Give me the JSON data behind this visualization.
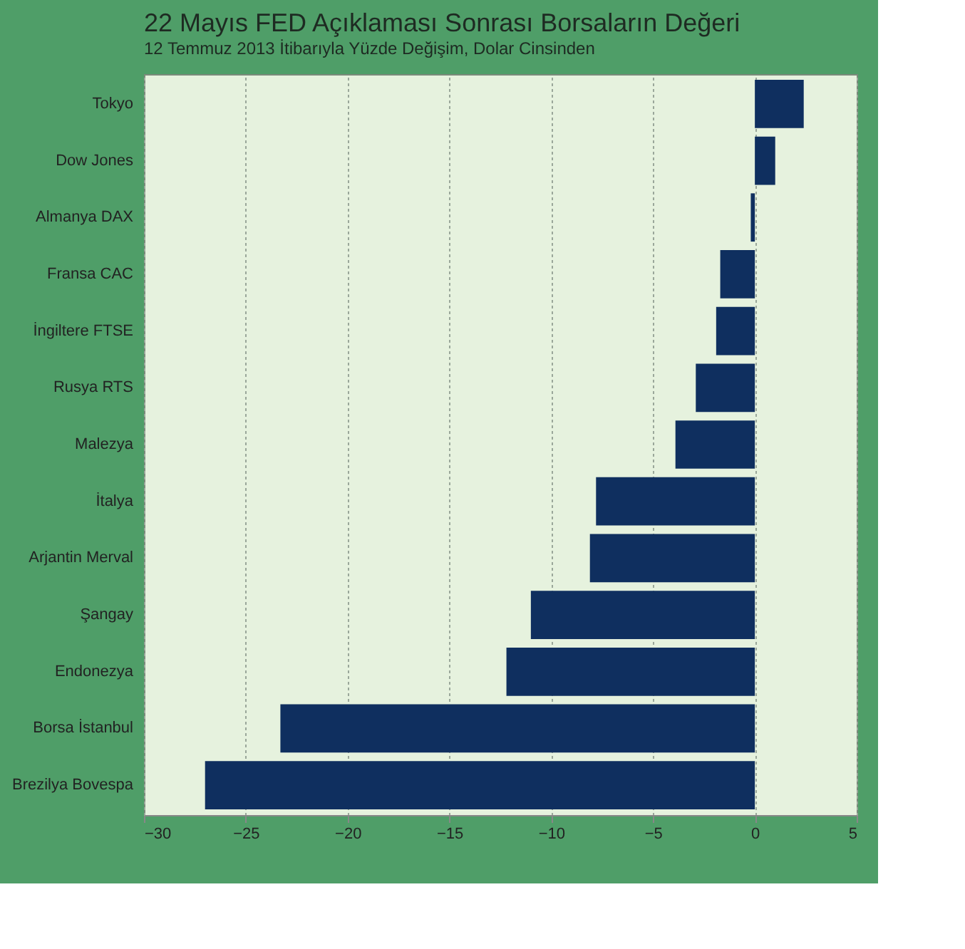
{
  "chart_data": {
    "type": "bar",
    "orientation": "horizontal",
    "title": "22 Mayıs FED Açıklaması Sonrası Borsaların Değeri",
    "subtitle": "12 Temmuz 2013 İtibarıyla Yüzde Değişim, Dolar Cinsinden",
    "categories": [
      "Tokyo",
      "Dow Jones",
      "Almanya DAX",
      "Fransa CAC",
      "İngiltere FTSE",
      "Rusya RTS",
      "Malezya",
      "İtalya",
      "Arjantin Merval",
      "Şangay",
      "Endonezya",
      "Borsa İstanbul",
      "Brezilya Bovespa"
    ],
    "values": [
      2.4,
      1.0,
      -0.2,
      -1.7,
      -1.9,
      -2.9,
      -3.9,
      -7.8,
      -8.1,
      -11.0,
      -12.2,
      -23.3,
      -27.0
    ],
    "color": "#0f2f5f",
    "xlim": [
      -30,
      5
    ],
    "xticks": [
      -30,
      -25,
      -20,
      -15,
      -10,
      -5,
      0,
      5
    ],
    "grid": "x"
  }
}
